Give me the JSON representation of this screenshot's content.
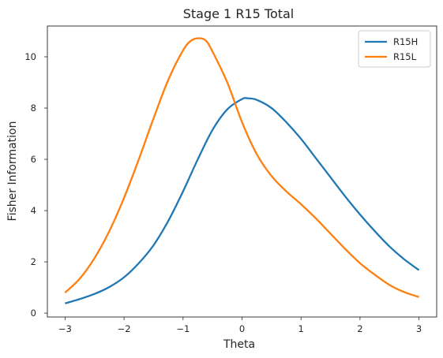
{
  "chart_data": {
    "type": "line",
    "title": "Stage 1 R15 Total",
    "xlabel": "Theta",
    "ylabel": "Fisher Information",
    "xlim": [
      -3.3,
      3.3
    ],
    "ylim": [
      -0.15,
      11.2
    ],
    "xticks": [
      -3,
      -2,
      -1,
      0,
      1,
      2,
      3
    ],
    "xtick_labels": [
      "−3",
      "−2",
      "−1",
      "0",
      "1",
      "2",
      "3"
    ],
    "yticks": [
      0,
      2,
      4,
      6,
      8,
      10
    ],
    "ytick_labels": [
      "0",
      "2",
      "4",
      "6",
      "8",
      "10"
    ],
    "grid": false,
    "legend": "top-right",
    "series": [
      {
        "name": "R15H",
        "color": "#1f77b4",
        "x": [
          -3.0,
          -2.75,
          -2.5,
          -2.25,
          -2.0,
          -1.75,
          -1.5,
          -1.25,
          -1.0,
          -0.75,
          -0.5,
          -0.25,
          0.0,
          0.1,
          0.25,
          0.5,
          0.75,
          1.0,
          1.25,
          1.5,
          1.75,
          2.0,
          2.25,
          2.5,
          2.75,
          3.0
        ],
        "y": [
          0.38,
          0.55,
          0.75,
          1.02,
          1.4,
          1.95,
          2.65,
          3.6,
          4.75,
          6.0,
          7.15,
          7.95,
          8.35,
          8.38,
          8.32,
          8.0,
          7.45,
          6.8,
          6.05,
          5.3,
          4.55,
          3.85,
          3.2,
          2.6,
          2.1,
          1.68
        ]
      },
      {
        "name": "R15L",
        "color": "#ff7f0e",
        "x": [
          -3.0,
          -2.75,
          -2.5,
          -2.25,
          -2.0,
          -1.75,
          -1.5,
          -1.25,
          -1.0,
          -0.85,
          -0.7,
          -0.6,
          -0.5,
          -0.25,
          0.0,
          0.25,
          0.5,
          0.75,
          1.0,
          1.25,
          1.5,
          1.75,
          2.0,
          2.25,
          2.5,
          2.75,
          3.0
        ],
        "y": [
          0.8,
          1.35,
          2.15,
          3.2,
          4.5,
          6.0,
          7.6,
          9.1,
          10.25,
          10.65,
          10.72,
          10.6,
          10.2,
          9.0,
          7.45,
          6.2,
          5.35,
          4.75,
          4.25,
          3.7,
          3.1,
          2.5,
          1.95,
          1.5,
          1.1,
          0.82,
          0.63
        ]
      }
    ]
  }
}
